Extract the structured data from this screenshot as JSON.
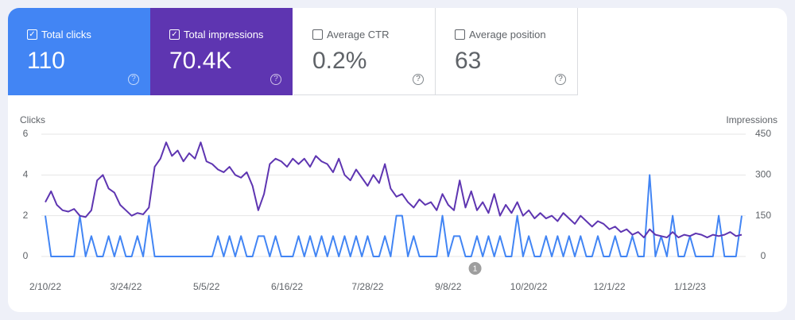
{
  "cards": [
    {
      "label": "Total clicks",
      "value": "110"
    },
    {
      "label": "Total impressions",
      "value": "70.4K"
    },
    {
      "label": "Average CTR",
      "value": "0.2%"
    },
    {
      "label": "Average position",
      "value": "63"
    }
  ],
  "chart_data": {
    "type": "line",
    "ylabel": "Clicks",
    "y2label": "Impressions",
    "x": [
      0,
      3,
      6,
      9,
      12,
      15,
      18,
      21,
      24,
      27,
      30,
      33,
      36,
      39,
      42,
      45,
      48,
      51,
      54,
      57,
      60,
      63,
      66,
      69,
      72,
      75,
      78,
      81,
      84,
      87,
      90,
      93,
      96,
      99,
      102,
      105,
      108,
      111,
      114,
      117,
      120,
      123,
      126,
      129,
      132,
      135,
      138,
      141,
      144,
      147,
      150,
      153,
      156,
      159,
      162,
      165,
      168,
      171,
      174,
      177,
      180,
      183,
      186,
      189,
      192,
      195,
      198,
      201,
      204,
      207,
      210,
      213,
      216,
      219,
      222,
      225,
      228,
      231,
      234,
      237,
      240,
      243,
      246,
      249,
      252,
      255,
      258,
      261,
      264,
      267,
      270,
      273,
      276,
      279,
      282,
      285,
      288,
      291,
      294,
      297,
      300,
      303,
      306,
      309,
      312,
      315,
      318,
      321,
      324,
      327,
      330,
      333,
      336,
      339,
      342,
      345,
      348,
      351,
      354,
      357,
      360,
      363
    ],
    "xlim": [
      0,
      363
    ],
    "xticks": [
      {
        "value": 0,
        "label": "2/10/22"
      },
      {
        "value": 42,
        "label": "3/24/22"
      },
      {
        "value": 84,
        "label": "5/5/22"
      },
      {
        "value": 126,
        "label": "6/16/22"
      },
      {
        "value": 168,
        "label": "7/28/22"
      },
      {
        "value": 210,
        "label": "9/8/22"
      },
      {
        "value": 252,
        "label": "10/20/22"
      },
      {
        "value": 294,
        "label": "12/1/22"
      },
      {
        "value": 336,
        "label": "1/12/23"
      }
    ],
    "ylim": [
      0,
      6
    ],
    "yticks": [
      0,
      2,
      4,
      6
    ],
    "y2lim": [
      0,
      450
    ],
    "y2ticks": [
      0,
      150,
      300,
      450
    ],
    "grid": true,
    "series": [
      {
        "color": "#4285f4",
        "values": [
          2,
          0,
          0,
          0,
          0,
          0,
          2,
          0,
          1,
          0,
          0,
          1,
          0,
          1,
          0,
          0,
          1,
          0,
          2,
          0,
          0,
          0,
          0,
          0,
          0,
          0,
          0,
          0,
          0,
          0,
          1,
          0,
          1,
          0,
          1,
          0,
          0,
          1,
          1,
          0,
          1,
          0,
          0,
          0,
          1,
          0,
          1,
          0,
          1,
          0,
          1,
          0,
          1,
          0,
          1,
          0,
          1,
          0,
          0,
          1,
          0,
          2,
          2,
          0,
          1,
          0,
          0,
          0,
          0,
          2,
          0,
          1,
          1,
          0,
          0,
          1,
          0,
          1,
          0,
          1,
          0,
          0,
          2,
          0,
          1,
          0,
          0,
          1,
          0,
          1,
          0,
          1,
          0,
          1,
          0,
          0,
          1,
          0,
          0,
          1,
          0,
          0,
          1,
          0,
          0,
          4,
          0,
          1,
          0,
          2,
          0,
          0,
          1,
          0,
          0,
          0,
          0,
          2,
          0,
          0,
          0,
          2
        ]
      },
      {
        "color": "#5e35b1",
        "axis": "y2",
        "values": [
          200,
          240,
          190,
          170,
          165,
          175,
          150,
          145,
          170,
          280,
          300,
          250,
          235,
          190,
          170,
          150,
          160,
          155,
          180,
          330,
          360,
          420,
          370,
          390,
          350,
          380,
          360,
          420,
          350,
          340,
          320,
          310,
          330,
          300,
          290,
          310,
          260,
          170,
          230,
          340,
          360,
          350,
          330,
          360,
          340,
          360,
          330,
          370,
          350,
          340,
          310,
          360,
          300,
          280,
          320,
          290,
          260,
          300,
          270,
          340,
          250,
          220,
          230,
          200,
          180,
          210,
          190,
          200,
          170,
          230,
          190,
          170,
          280,
          180,
          240,
          170,
          200,
          160,
          230,
          150,
          190,
          160,
          200,
          150,
          170,
          140,
          160,
          140,
          150,
          130,
          160,
          140,
          120,
          150,
          130,
          110,
          130,
          120,
          100,
          110,
          90,
          100,
          80,
          90,
          70,
          100,
          80,
          75,
          70,
          90,
          70,
          80,
          75,
          85,
          80,
          70,
          80,
          75,
          80,
          90,
          75,
          80
        ]
      }
    ],
    "annotations": [
      {
        "x": 224,
        "text": "1"
      }
    ]
  }
}
